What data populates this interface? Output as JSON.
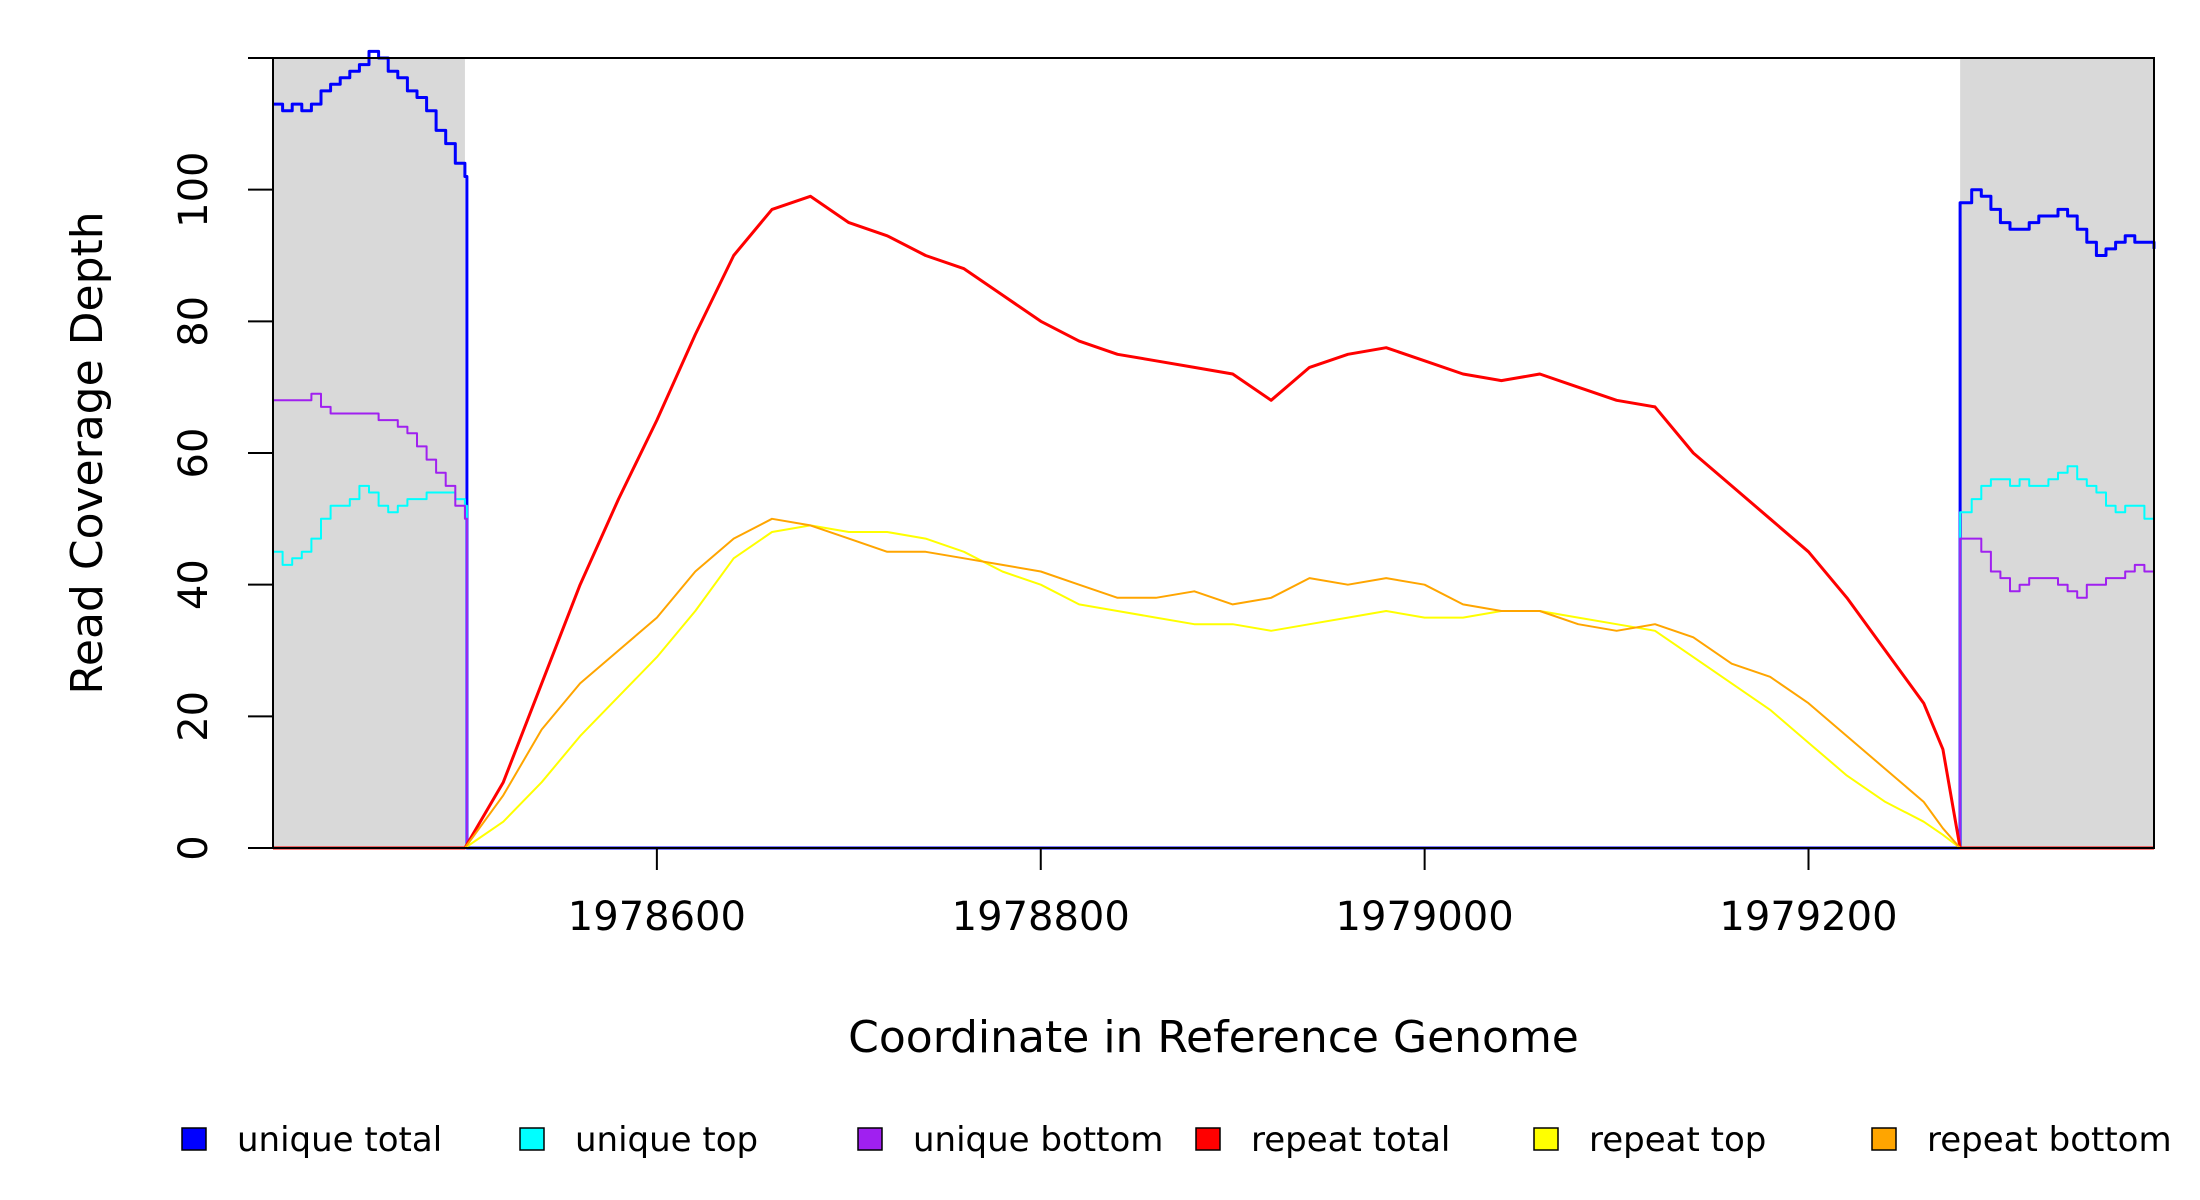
{
  "chart_data": {
    "type": "line",
    "title": "",
    "xlabel": "Coordinate in Reference Genome",
    "ylabel": "Read Coverage Depth",
    "xlim": [
      1978400,
      1979380
    ],
    "ylim": [
      0,
      120
    ],
    "x_ticks": [
      1978600,
      1978800,
      1979000,
      1979200
    ],
    "x_tick_labels": [
      "1978600",
      "1978800",
      "1979000",
      "1979200"
    ],
    "y_ticks": [
      0,
      20,
      40,
      60,
      80,
      100,
      120
    ],
    "y_tick_labels": [
      "0",
      "20",
      "40",
      "60",
      "80",
      "100",
      ""
    ],
    "grid": false,
    "legend_position": "bottom",
    "shaded_regions": [
      {
        "x": [
          1978400,
          1978500
        ],
        "color": "#d9d9d9"
      },
      {
        "x": [
          1979279,
          1979380
        ],
        "color": "#d9d9d9"
      }
    ],
    "series": [
      {
        "name": "unique total",
        "color": "#0000ff",
        "width": 3,
        "step": true,
        "points": [
          [
            1978400,
            113
          ],
          [
            1978405,
            112
          ],
          [
            1978410,
            113
          ],
          [
            1978415,
            112
          ],
          [
            1978420,
            113
          ],
          [
            1978425,
            115
          ],
          [
            1978430,
            116
          ],
          [
            1978435,
            117
          ],
          [
            1978440,
            118
          ],
          [
            1978445,
            119
          ],
          [
            1978450,
            121
          ],
          [
            1978455,
            120
          ],
          [
            1978460,
            118
          ],
          [
            1978465,
            117
          ],
          [
            1978470,
            115
          ],
          [
            1978475,
            114
          ],
          [
            1978480,
            112
          ],
          [
            1978485,
            109
          ],
          [
            1978490,
            107
          ],
          [
            1978495,
            104
          ],
          [
            1978500,
            102
          ],
          [
            1978501,
            0
          ],
          [
            1979278,
            0
          ],
          [
            1979279,
            98
          ],
          [
            1979285,
            100
          ],
          [
            1979290,
            99
          ],
          [
            1979295,
            97
          ],
          [
            1979300,
            95
          ],
          [
            1979305,
            94
          ],
          [
            1979310,
            94
          ],
          [
            1979315,
            95
          ],
          [
            1979320,
            96
          ],
          [
            1979325,
            96
          ],
          [
            1979330,
            97
          ],
          [
            1979335,
            96
          ],
          [
            1979340,
            94
          ],
          [
            1979345,
            92
          ],
          [
            1979350,
            90
          ],
          [
            1979355,
            91
          ],
          [
            1979360,
            92
          ],
          [
            1979365,
            93
          ],
          [
            1979370,
            92
          ],
          [
            1979380,
            91
          ]
        ]
      },
      {
        "name": "unique top",
        "color": "#00ffff",
        "width": 2,
        "step": true,
        "points": [
          [
            1978400,
            45
          ],
          [
            1978405,
            43
          ],
          [
            1978410,
            44
          ],
          [
            1978415,
            45
          ],
          [
            1978420,
            47
          ],
          [
            1978425,
            50
          ],
          [
            1978430,
            52
          ],
          [
            1978435,
            52
          ],
          [
            1978440,
            53
          ],
          [
            1978445,
            55
          ],
          [
            1978450,
            54
          ],
          [
            1978455,
            52
          ],
          [
            1978460,
            51
          ],
          [
            1978465,
            52
          ],
          [
            1978470,
            53
          ],
          [
            1978475,
            53
          ],
          [
            1978480,
            54
          ],
          [
            1978485,
            54
          ],
          [
            1978490,
            54
          ],
          [
            1978495,
            53
          ],
          [
            1978500,
            52
          ],
          [
            1978501,
            0
          ],
          [
            1979278,
            0
          ],
          [
            1979279,
            51
          ],
          [
            1979285,
            53
          ],
          [
            1979290,
            55
          ],
          [
            1979295,
            56
          ],
          [
            1979300,
            56
          ],
          [
            1979305,
            55
          ],
          [
            1979310,
            56
          ],
          [
            1979315,
            55
          ],
          [
            1979320,
            55
          ],
          [
            1979325,
            56
          ],
          [
            1979330,
            57
          ],
          [
            1979335,
            58
          ],
          [
            1979340,
            56
          ],
          [
            1979345,
            55
          ],
          [
            1979350,
            54
          ],
          [
            1979355,
            52
          ],
          [
            1979360,
            51
          ],
          [
            1979365,
            52
          ],
          [
            1979370,
            52
          ],
          [
            1979375,
            50
          ],
          [
            1979380,
            50
          ]
        ]
      },
      {
        "name": "unique bottom",
        "color": "#a020f0",
        "width": 2,
        "step": true,
        "points": [
          [
            1978400,
            68
          ],
          [
            1978405,
            68
          ],
          [
            1978410,
            68
          ],
          [
            1978415,
            68
          ],
          [
            1978420,
            69
          ],
          [
            1978425,
            67
          ],
          [
            1978430,
            66
          ],
          [
            1978435,
            66
          ],
          [
            1978440,
            66
          ],
          [
            1978445,
            66
          ],
          [
            1978450,
            66
          ],
          [
            1978455,
            65
          ],
          [
            1978460,
            65
          ],
          [
            1978465,
            64
          ],
          [
            1978470,
            63
          ],
          [
            1978475,
            61
          ],
          [
            1978480,
            59
          ],
          [
            1978485,
            57
          ],
          [
            1978490,
            55
          ],
          [
            1978495,
            52
          ],
          [
            1978500,
            50
          ],
          [
            1978501,
            0
          ],
          [
            1979278,
            0
          ],
          [
            1979279,
            47
          ],
          [
            1979285,
            47
          ],
          [
            1979290,
            45
          ],
          [
            1979295,
            42
          ],
          [
            1979300,
            41
          ],
          [
            1979305,
            39
          ],
          [
            1979310,
            40
          ],
          [
            1979315,
            41
          ],
          [
            1979320,
            41
          ],
          [
            1979325,
            41
          ],
          [
            1979330,
            40
          ],
          [
            1979335,
            39
          ],
          [
            1979340,
            38
          ],
          [
            1979345,
            40
          ],
          [
            1979350,
            40
          ],
          [
            1979355,
            41
          ],
          [
            1979360,
            41
          ],
          [
            1979365,
            42
          ],
          [
            1979370,
            43
          ],
          [
            1979375,
            42
          ],
          [
            1979380,
            41
          ]
        ]
      },
      {
        "name": "repeat total",
        "color": "#ff0000",
        "width": 3,
        "step": false,
        "points": [
          [
            1978400,
            0
          ],
          [
            1978500,
            0
          ],
          [
            1978520,
            10
          ],
          [
            1978540,
            25
          ],
          [
            1978560,
            40
          ],
          [
            1978580,
            53
          ],
          [
            1978600,
            65
          ],
          [
            1978620,
            78
          ],
          [
            1978640,
            90
          ],
          [
            1978660,
            97
          ],
          [
            1978680,
            99
          ],
          [
            1978700,
            95
          ],
          [
            1978720,
            93
          ],
          [
            1978740,
            90
          ],
          [
            1978760,
            88
          ],
          [
            1978780,
            84
          ],
          [
            1978800,
            80
          ],
          [
            1978820,
            77
          ],
          [
            1978840,
            75
          ],
          [
            1978860,
            74
          ],
          [
            1978880,
            73
          ],
          [
            1978900,
            72
          ],
          [
            1978920,
            68
          ],
          [
            1978940,
            73
          ],
          [
            1978960,
            75
          ],
          [
            1978980,
            76
          ],
          [
            1979000,
            74
          ],
          [
            1979020,
            72
          ],
          [
            1979040,
            71
          ],
          [
            1979060,
            72
          ],
          [
            1979080,
            70
          ],
          [
            1979100,
            68
          ],
          [
            1979120,
            67
          ],
          [
            1979140,
            60
          ],
          [
            1979160,
            55
          ],
          [
            1979180,
            50
          ],
          [
            1979200,
            45
          ],
          [
            1979220,
            38
          ],
          [
            1979240,
            30
          ],
          [
            1979260,
            22
          ],
          [
            1979270,
            15
          ],
          [
            1979279,
            0
          ],
          [
            1979380,
            0
          ]
        ]
      },
      {
        "name": "repeat top",
        "color": "#ffff00",
        "width": 2,
        "step": false,
        "points": [
          [
            1978400,
            0
          ],
          [
            1978500,
            0
          ],
          [
            1978520,
            4
          ],
          [
            1978540,
            10
          ],
          [
            1978560,
            17
          ],
          [
            1978580,
            23
          ],
          [
            1978600,
            29
          ],
          [
            1978620,
            36
          ],
          [
            1978640,
            44
          ],
          [
            1978660,
            48
          ],
          [
            1978680,
            49
          ],
          [
            1978700,
            48
          ],
          [
            1978720,
            48
          ],
          [
            1978740,
            47
          ],
          [
            1978760,
            45
          ],
          [
            1978780,
            42
          ],
          [
            1978800,
            40
          ],
          [
            1978820,
            37
          ],
          [
            1978840,
            36
          ],
          [
            1978860,
            35
          ],
          [
            1978880,
            34
          ],
          [
            1978900,
            34
          ],
          [
            1978920,
            33
          ],
          [
            1978940,
            34
          ],
          [
            1978960,
            35
          ],
          [
            1978980,
            36
          ],
          [
            1979000,
            35
          ],
          [
            1979020,
            35
          ],
          [
            1979040,
            36
          ],
          [
            1979060,
            36
          ],
          [
            1979080,
            35
          ],
          [
            1979100,
            34
          ],
          [
            1979120,
            33
          ],
          [
            1979140,
            29
          ],
          [
            1979160,
            25
          ],
          [
            1979180,
            21
          ],
          [
            1979200,
            16
          ],
          [
            1979220,
            11
          ],
          [
            1979240,
            7
          ],
          [
            1979260,
            4
          ],
          [
            1979270,
            2
          ],
          [
            1979279,
            0
          ],
          [
            1979380,
            0
          ]
        ]
      },
      {
        "name": "repeat bottom",
        "color": "#ffa500",
        "width": 2,
        "step": false,
        "points": [
          [
            1978400,
            0
          ],
          [
            1978500,
            0
          ],
          [
            1978520,
            8
          ],
          [
            1978540,
            18
          ],
          [
            1978560,
            25
          ],
          [
            1978580,
            30
          ],
          [
            1978600,
            35
          ],
          [
            1978620,
            42
          ],
          [
            1978640,
            47
          ],
          [
            1978660,
            50
          ],
          [
            1978680,
            49
          ],
          [
            1978700,
            47
          ],
          [
            1978720,
            45
          ],
          [
            1978740,
            45
          ],
          [
            1978760,
            44
          ],
          [
            1978780,
            43
          ],
          [
            1978800,
            42
          ],
          [
            1978820,
            40
          ],
          [
            1978840,
            38
          ],
          [
            1978860,
            38
          ],
          [
            1978880,
            39
          ],
          [
            1978900,
            37
          ],
          [
            1978920,
            38
          ],
          [
            1978940,
            41
          ],
          [
            1978960,
            40
          ],
          [
            1978980,
            41
          ],
          [
            1979000,
            40
          ],
          [
            1979020,
            37
          ],
          [
            1979040,
            36
          ],
          [
            1979060,
            36
          ],
          [
            1979080,
            34
          ],
          [
            1979100,
            33
          ],
          [
            1979120,
            34
          ],
          [
            1979140,
            32
          ],
          [
            1979160,
            28
          ],
          [
            1979180,
            26
          ],
          [
            1979200,
            22
          ],
          [
            1979220,
            17
          ],
          [
            1979240,
            12
          ],
          [
            1979260,
            7
          ],
          [
            1979270,
            3
          ],
          [
            1979279,
            0
          ],
          [
            1979380,
            0
          ]
        ]
      }
    ]
  }
}
